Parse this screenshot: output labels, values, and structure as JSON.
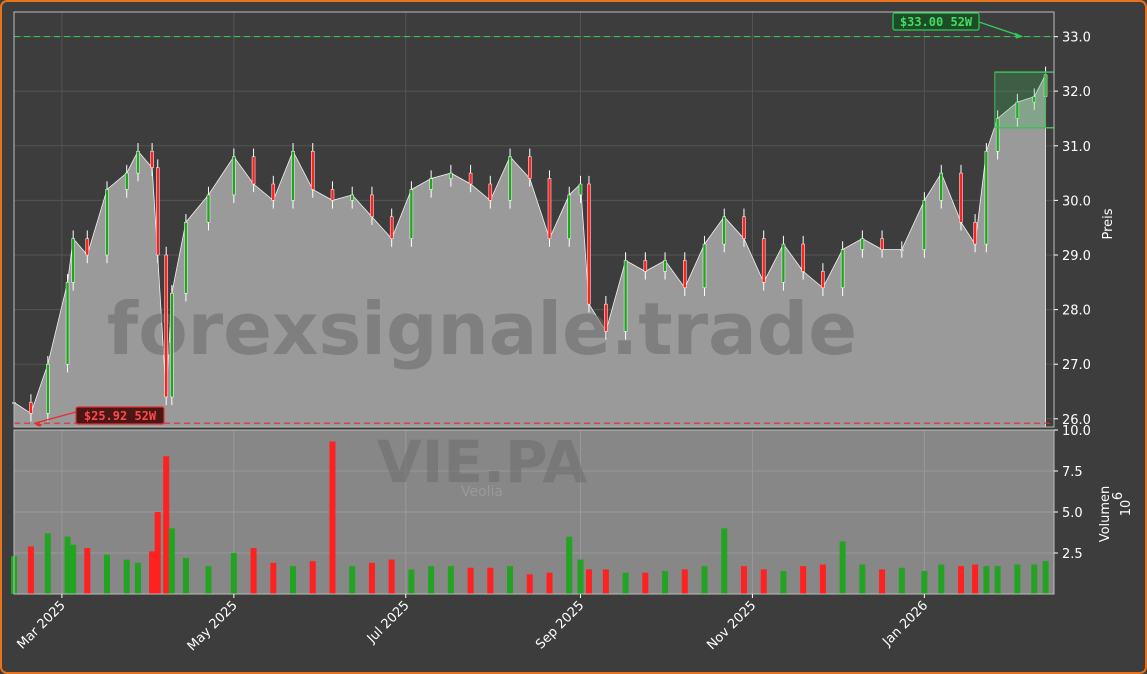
{
  "chart_data": {
    "type": "candlestick",
    "ticker": "VIE.PA",
    "company": "Veolia",
    "watermark": "forexsignale.trade",
    "price_panel": {
      "ylabel": "Preis",
      "ylim": [
        25.85,
        33.45
      ],
      "yticks": [
        "26.0",
        "27.0",
        "28.0",
        "29.0",
        "30.0",
        "31.0",
        "32.0",
        "33.0"
      ],
      "high_52w": {
        "value": 33.0,
        "label": "$33.00 52W",
        "color": "#2ecc55"
      },
      "low_52w": {
        "value": 25.92,
        "label": "$25.92 52W",
        "color": "#e03030"
      },
      "recent_range_box": {
        "low": 31.33,
        "high": 32.35,
        "start": "2026-01-26",
        "end": "2026-02-13"
      }
    },
    "volume_panel": {
      "ylabel": "Volumen",
      "scale_label": "10",
      "scale_exponent": "6",
      "ylim": [
        0,
        10.0
      ],
      "yticks": [
        "2.5",
        "5.0",
        "7.5",
        "10.0"
      ]
    },
    "x_axis": {
      "start": "2025-02-12",
      "end": "2026-02-16",
      "ticks": [
        {
          "label": "Mar 2025",
          "date": "2025-03-01"
        },
        {
          "label": "May 2025",
          "date": "2025-05-01"
        },
        {
          "label": "Jul 2025",
          "date": "2025-07-01"
        },
        {
          "label": "Sep 2025",
          "date": "2025-09-01"
        },
        {
          "label": "Nov 2025",
          "date": "2025-11-01"
        },
        {
          "label": "Jan 2026",
          "date": "2026-01-01"
        }
      ]
    },
    "colors": {
      "up": "#22a322",
      "down": "#ff2020",
      "area": "#9a9a9a",
      "background": "#3d3d3d"
    },
    "series": {
      "date": [
        "2025-02-12",
        "2025-02-18",
        "2025-02-24",
        "2025-03-03",
        "2025-03-05",
        "2025-03-10",
        "2025-03-17",
        "2025-03-24",
        "2025-03-28",
        "2025-04-02",
        "2025-04-04",
        "2025-04-07",
        "2025-04-09",
        "2025-04-14",
        "2025-04-22",
        "2025-05-01",
        "2025-05-08",
        "2025-05-15",
        "2025-05-22",
        "2025-05-29",
        "2025-06-05",
        "2025-06-12",
        "2025-06-19",
        "2025-06-26",
        "2025-07-03",
        "2025-07-10",
        "2025-07-17",
        "2025-07-24",
        "2025-07-31",
        "2025-08-07",
        "2025-08-14",
        "2025-08-21",
        "2025-08-28",
        "2025-09-01",
        "2025-09-04",
        "2025-09-10",
        "2025-09-17",
        "2025-09-24",
        "2025-10-01",
        "2025-10-08",
        "2025-10-15",
        "2025-10-22",
        "2025-10-29",
        "2025-11-05",
        "2025-11-12",
        "2025-11-19",
        "2025-11-26",
        "2025-12-03",
        "2025-12-10",
        "2025-12-17",
        "2025-12-24",
        "2026-01-01",
        "2026-01-07",
        "2026-01-14",
        "2026-01-19",
        "2026-01-23",
        "2026-01-27",
        "2026-02-03",
        "2026-02-09",
        "2026-02-13"
      ],
      "close": [
        26.3,
        26.1,
        27.0,
        28.5,
        29.3,
        29.0,
        30.2,
        30.5,
        30.9,
        30.6,
        29.0,
        26.4,
        28.3,
        29.6,
        30.1,
        30.8,
        30.3,
        30.0,
        30.9,
        30.2,
        30.0,
        30.1,
        29.7,
        29.3,
        30.2,
        30.4,
        30.5,
        30.3,
        30.0,
        30.8,
        30.4,
        29.3,
        30.1,
        30.3,
        28.1,
        27.6,
        28.9,
        28.7,
        28.9,
        28.4,
        29.2,
        29.7,
        29.3,
        28.5,
        29.2,
        28.7,
        28.4,
        29.1,
        29.3,
        29.1,
        29.1,
        30.0,
        30.5,
        29.6,
        29.2,
        30.9,
        31.5,
        31.8,
        31.9,
        32.3
      ],
      "volume": [
        2.3,
        2.9,
        3.7,
        3.5,
        3.0,
        2.8,
        2.4,
        2.1,
        1.9,
        2.6,
        5.0,
        8.4,
        4.0,
        2.2,
        1.7,
        2.5,
        2.8,
        1.9,
        1.7,
        2.0,
        9.3,
        1.7,
        1.9,
        2.1,
        1.5,
        1.7,
        1.7,
        1.6,
        1.6,
        1.7,
        1.2,
        1.3,
        3.5,
        2.1,
        1.5,
        1.5,
        1.3,
        1.3,
        1.4,
        1.5,
        1.7,
        4.0,
        1.7,
        1.5,
        1.4,
        1.7,
        1.8,
        3.2,
        1.8,
        1.5,
        1.6,
        1.4,
        1.8,
        1.7,
        1.8,
        1.7,
        1.7,
        1.8,
        1.8,
        2.0
      ]
    }
  }
}
